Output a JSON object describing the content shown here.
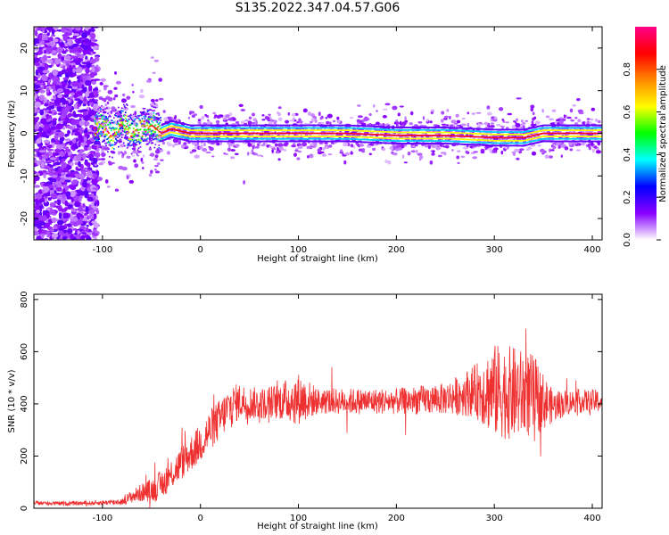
{
  "title": "S135.2022.347.04.57.G06",
  "chart_data": [
    {
      "type": "heatmap",
      "title": "S135.2022.347.04.57.G06",
      "xlabel": "Height of straight line (km)",
      "ylabel": "Frequency (Hz)",
      "xlim": [
        -170,
        410
      ],
      "ylim": [
        -25,
        25
      ],
      "x_ticks": [
        -100,
        0,
        100,
        200,
        300,
        400
      ],
      "y_ticks": [
        -20,
        -10,
        0,
        10,
        20
      ],
      "colorbar": {
        "label": "Normalized spectral amplitude",
        "range": [
          0,
          1
        ],
        "ticks": [
          "0.0",
          "0.2",
          "0.4",
          "0.6",
          "0.8"
        ],
        "tick_values": [
          0.0,
          0.2,
          0.4,
          0.6,
          0.8
        ],
        "colors": [
          "#ffffff",
          "#8800ff",
          "#0000ff",
          "#00ffff",
          "#00ff00",
          "#ffff00",
          "#ff8800",
          "#ff0000",
          "#ff0088"
        ]
      },
      "ridge": {
        "x": [
          -110,
          -100,
          -90,
          -80,
          -70,
          -60,
          -50,
          -40,
          -30,
          -20,
          -10,
          0,
          50,
          100,
          150,
          200,
          250,
          300,
          330,
          350,
          400
        ],
        "y": [
          0.5,
          2,
          -1,
          3,
          0,
          1,
          2,
          0,
          1,
          0.5,
          0,
          0,
          0,
          0,
          0,
          -0.5,
          -0.5,
          -1,
          -1,
          0,
          0
        ]
      }
    },
    {
      "type": "line",
      "xlabel": "Height of straight line (km)",
      "ylabel": "SNR (10 * v/v)",
      "xlim": [
        -170,
        410
      ],
      "ylim": [
        0,
        820
      ],
      "x_ticks": [
        -100,
        0,
        100,
        200,
        300,
        400
      ],
      "y_ticks": [
        0,
        200,
        400,
        600,
        800
      ],
      "color": "#ee3030",
      "series": [
        {
          "x": [
            -170,
            -140,
            -110,
            -80,
            -70,
            -60,
            -50,
            -40,
            -30,
            -20,
            -10,
            0,
            10,
            20,
            30,
            40,
            60,
            80,
            100,
            120,
            150,
            200,
            250,
            280,
            300,
            320,
            340,
            360,
            380,
            410
          ],
          "y": [
            20,
            18,
            20,
            25,
            45,
            60,
            70,
            90,
            130,
            170,
            210,
            250,
            300,
            340,
            390,
            410,
            400,
            410,
            420,
            410,
            410,
            410,
            420,
            450,
            450,
            440,
            430,
            390,
            410,
            410
          ],
          "spread": [
            8,
            8,
            8,
            12,
            25,
            35,
            45,
            55,
            60,
            65,
            70,
            75,
            80,
            80,
            80,
            70,
            60,
            70,
            100,
            50,
            50,
            50,
            60,
            100,
            180,
            180,
            160,
            60,
            45,
            45
          ]
        }
      ]
    }
  ]
}
